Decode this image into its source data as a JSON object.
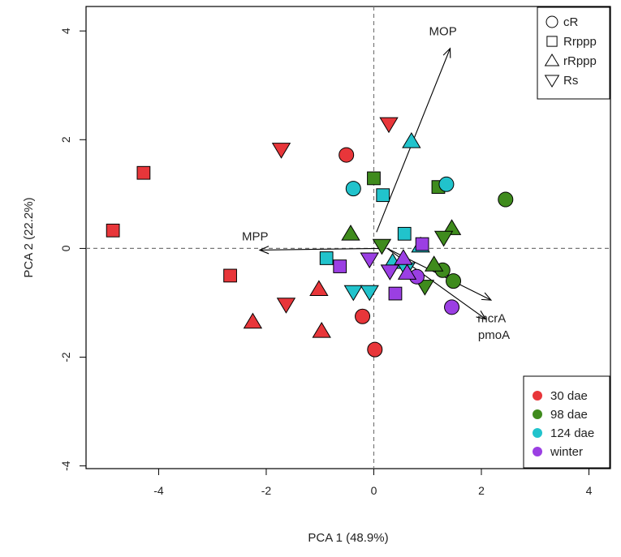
{
  "chart_data": {
    "type": "scatter",
    "title": "",
    "xlabel": "PCA 1 (48.9%)",
    "ylabel": "PCA 2 (22.2%)",
    "xlim": [
      -5.35,
      4.4
    ],
    "ylim": [
      -4.05,
      4.45
    ],
    "x_ticks": [
      -4,
      -2,
      0,
      2,
      4
    ],
    "y_ticks": [
      -4,
      -2,
      0,
      2,
      4
    ],
    "x_tick_labels": [
      "-4",
      "-2",
      "0",
      "2",
      "4"
    ],
    "y_tick_labels": [
      "-4",
      "-2",
      "0",
      "2",
      "4"
    ],
    "reference_lines": {
      "x": 0,
      "y": 0,
      "style": "dashed"
    },
    "colors": {
      "30 dae": "#e8363a",
      "98 dae": "#3f8b1d",
      "124 dae": "#21c3cc",
      "winter": "#9b3fe3"
    },
    "shape_legend": {
      "position": "top-right",
      "entries": [
        {
          "label": "cR",
          "shape": "circle"
        },
        {
          "label": "Rrppp",
          "shape": "square"
        },
        {
          "label": "rRppp",
          "shape": "triangle-up"
        },
        {
          "label": "Rs",
          "shape": "triangle-down"
        }
      ]
    },
    "color_legend": {
      "position": "bottom-right",
      "entries": [
        "30 dae",
        "98 dae",
        "124 dae",
        "winter"
      ]
    },
    "vectors": [
      {
        "label": "MOP",
        "x0": 0.05,
        "y0": 0.3,
        "x1": 1.42,
        "y1": 3.68
      },
      {
        "label": "MPP",
        "x0": 0.1,
        "y0": 0.0,
        "x1": -2.12,
        "y1": -0.03
      },
      {
        "label": "mcrA",
        "x0": 0.25,
        "y0": 0.0,
        "x1": 2.08,
        "y1": -1.3
      },
      {
        "label": "pmoA",
        "x0": 0.25,
        "y0": 0.0,
        "x1": 2.18,
        "y1": -0.95
      }
    ],
    "points": [
      {
        "time": "30 dae",
        "group": "cR",
        "x": -0.51,
        "y": 1.72
      },
      {
        "time": "30 dae",
        "group": "cR",
        "x": -0.21,
        "y": -1.25
      },
      {
        "time": "30 dae",
        "group": "cR",
        "x": 0.02,
        "y": -1.86
      },
      {
        "time": "30 dae",
        "group": "Rrppp",
        "x": -4.28,
        "y": 1.39
      },
      {
        "time": "30 dae",
        "group": "Rrppp",
        "x": -4.85,
        "y": 0.33
      },
      {
        "time": "30 dae",
        "group": "Rrppp",
        "x": -2.67,
        "y": -0.5
      },
      {
        "time": "30 dae",
        "group": "rRppp",
        "x": -2.25,
        "y": -1.35
      },
      {
        "time": "30 dae",
        "group": "rRppp",
        "x": -1.02,
        "y": -0.75
      },
      {
        "time": "30 dae",
        "group": "rRppp",
        "x": -0.97,
        "y": -1.52
      },
      {
        "time": "30 dae",
        "group": "Rs",
        "x": -1.72,
        "y": 1.82
      },
      {
        "time": "30 dae",
        "group": "Rs",
        "x": -1.63,
        "y": -1.03
      },
      {
        "time": "30 dae",
        "group": "Rs",
        "x": 0.28,
        "y": 2.29
      },
      {
        "time": "98 dae",
        "group": "cR",
        "x": 2.45,
        "y": 0.9
      },
      {
        "time": "98 dae",
        "group": "cR",
        "x": 1.28,
        "y": -0.4
      },
      {
        "time": "98 dae",
        "group": "cR",
        "x": 1.48,
        "y": -0.6
      },
      {
        "time": "98 dae",
        "group": "Rrppp",
        "x": 0.0,
        "y": 1.29
      },
      {
        "time": "98 dae",
        "group": "Rrppp",
        "x": 1.2,
        "y": 1.13
      },
      {
        "time": "98 dae",
        "group": "rRppp",
        "x": -0.43,
        "y": 0.27
      },
      {
        "time": "98 dae",
        "group": "rRppp",
        "x": 1.45,
        "y": 0.37
      },
      {
        "time": "98 dae",
        "group": "rRppp",
        "x": 1.12,
        "y": -0.3
      },
      {
        "time": "98 dae",
        "group": "Rs",
        "x": 0.15,
        "y": 0.05
      },
      {
        "time": "98 dae",
        "group": "Rs",
        "x": 1.3,
        "y": 0.2
      },
      {
        "time": "98 dae",
        "group": "Rs",
        "x": 0.95,
        "y": -0.7
      },
      {
        "time": "124 dae",
        "group": "cR",
        "x": -0.38,
        "y": 1.1
      },
      {
        "time": "124 dae",
        "group": "cR",
        "x": 1.35,
        "y": 1.18
      },
      {
        "time": "124 dae",
        "group": "Rrppp",
        "x": 0.17,
        "y": 0.98
      },
      {
        "time": "124 dae",
        "group": "Rrppp",
        "x": 0.57,
        "y": 0.27
      },
      {
        "time": "124 dae",
        "group": "Rrppp",
        "x": -0.88,
        "y": -0.18
      },
      {
        "time": "124 dae",
        "group": "rRppp",
        "x": 0.7,
        "y": 1.97
      },
      {
        "time": "124 dae",
        "group": "rRppp",
        "x": 0.87,
        "y": 0.05
      },
      {
        "time": "124 dae",
        "group": "rRppp",
        "x": 0.35,
        "y": -0.25
      },
      {
        "time": "124 dae",
        "group": "Rs",
        "x": -0.38,
        "y": -0.8
      },
      {
        "time": "124 dae",
        "group": "Rs",
        "x": -0.08,
        "y": -0.8
      },
      {
        "time": "124 dae",
        "group": "Rs",
        "x": 0.6,
        "y": -0.38
      },
      {
        "time": "winter",
        "group": "cR",
        "x": 0.8,
        "y": -0.52
      },
      {
        "time": "winter",
        "group": "cR",
        "x": 1.45,
        "y": -1.08
      },
      {
        "time": "winter",
        "group": "Rrppp",
        "x": -0.63,
        "y": -0.33
      },
      {
        "time": "winter",
        "group": "Rrppp",
        "x": 0.4,
        "y": -0.83
      },
      {
        "time": "winter",
        "group": "Rrppp",
        "x": 0.9,
        "y": 0.08
      },
      {
        "time": "winter",
        "group": "rRppp",
        "x": 0.55,
        "y": -0.18
      },
      {
        "time": "winter",
        "group": "rRppp",
        "x": 0.62,
        "y": -0.45
      },
      {
        "time": "winter",
        "group": "Rs",
        "x": -0.08,
        "y": -0.2
      },
      {
        "time": "winter",
        "group": "Rs",
        "x": 0.3,
        "y": -0.42
      }
    ]
  }
}
